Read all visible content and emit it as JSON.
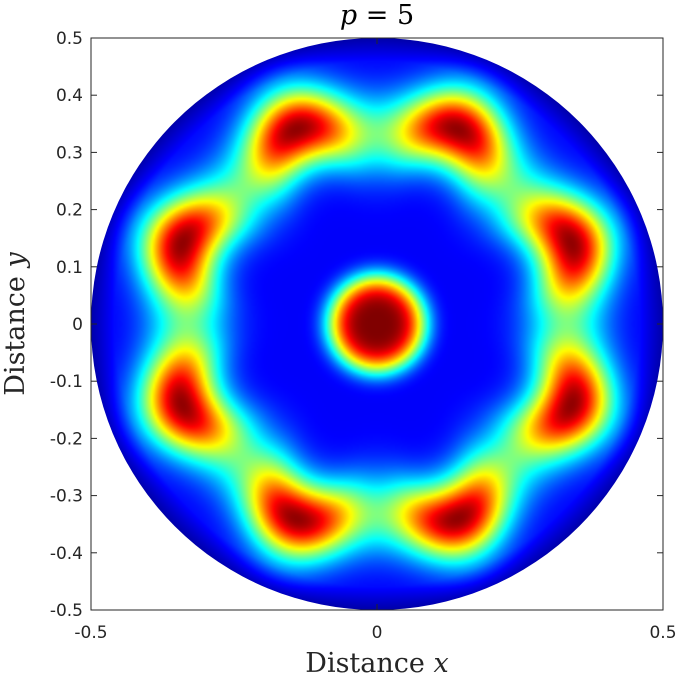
{
  "chart_data": {
    "type": "heatmap",
    "title_var": "p",
    "title_eq": " = 5",
    "xlabel_text": "Distance ",
    "xlabel_var": "x",
    "ylabel_text": "Distance ",
    "ylabel_var": "y",
    "xlim": [
      -0.5,
      0.5
    ],
    "ylim": [
      -0.5,
      0.5
    ],
    "xticks": [
      "-0.5",
      "0",
      "0.5"
    ],
    "yticks": [
      "0.5",
      "0.4",
      "0.3",
      "0.2",
      "0.1",
      "0",
      "-0.1",
      "-0.2",
      "-0.3",
      "-0.4",
      "-0.5"
    ],
    "xtick_values": [
      -0.5,
      0,
      0.5
    ],
    "ytick_values": [
      0.5,
      0.4,
      0.3,
      0.2,
      0.1,
      0,
      -0.1,
      -0.2,
      -0.3,
      -0.4,
      -0.5
    ],
    "domain_radius": 0.5,
    "colormap": "jet",
    "field": {
      "description_visible": "circular domain with central peak and 8-lobed ring",
      "center_peak_radius": 0.0,
      "center_peak_width": 0.085,
      "ring_radius": 0.35,
      "ring_width": 0.07,
      "ring_lobes": 8,
      "lobe_angle_offset_deg": 22.5
    },
    "grid": false,
    "colors": {
      "axis": "#262626",
      "background": "#ffffff"
    }
  }
}
